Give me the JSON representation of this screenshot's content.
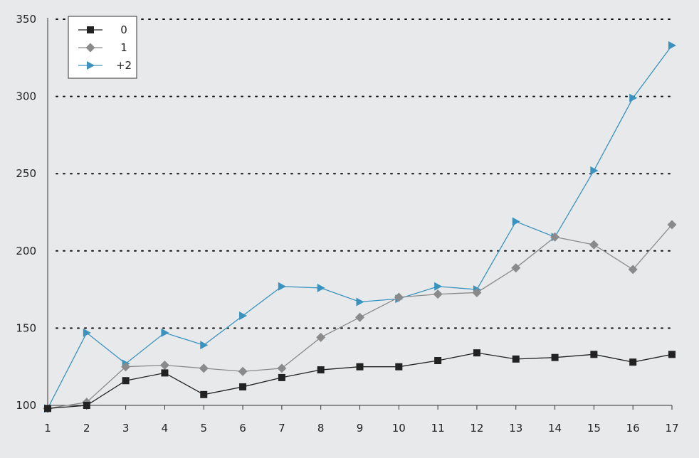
{
  "chart_data": {
    "type": "line",
    "title": "",
    "xlabel": "",
    "ylabel": "",
    "x": [
      1,
      2,
      3,
      4,
      5,
      6,
      7,
      8,
      9,
      10,
      11,
      12,
      13,
      14,
      15,
      16,
      17
    ],
    "x_tick_labels": [
      "1",
      "2",
      "3",
      "4",
      "5",
      "6",
      "7",
      "8",
      "9",
      "10",
      "11",
      "12",
      "13",
      "14",
      "15",
      "16",
      "17"
    ],
    "y_tick_labels": [
      "100",
      "150",
      "200",
      "250",
      "300",
      "350"
    ],
    "y_ticks": [
      100,
      150,
      200,
      250,
      300,
      350
    ],
    "ylim": [
      100,
      350
    ],
    "grid": "horizontal dotted",
    "legend_position": "top-left",
    "series": [
      {
        "name": "0",
        "color": "#222222",
        "marker": "square",
        "values": [
          98,
          100,
          116,
          121,
          107,
          112,
          118,
          123,
          125,
          125,
          129,
          134,
          130,
          131,
          133,
          128,
          133
        ]
      },
      {
        "name": "1",
        "color": "#8a8a8a",
        "marker": "diamond",
        "values": [
          98,
          102,
          125,
          126,
          124,
          122,
          124,
          144,
          157,
          170,
          172,
          173,
          189,
          209,
          204,
          188,
          217
        ]
      },
      {
        "name": "+2",
        "color": "#3a93be",
        "marker": "triangle-right",
        "values": [
          98,
          147,
          127,
          147,
          139,
          158,
          177,
          176,
          167,
          169,
          177,
          175,
          219,
          209,
          252,
          299,
          333
        ]
      }
    ]
  }
}
